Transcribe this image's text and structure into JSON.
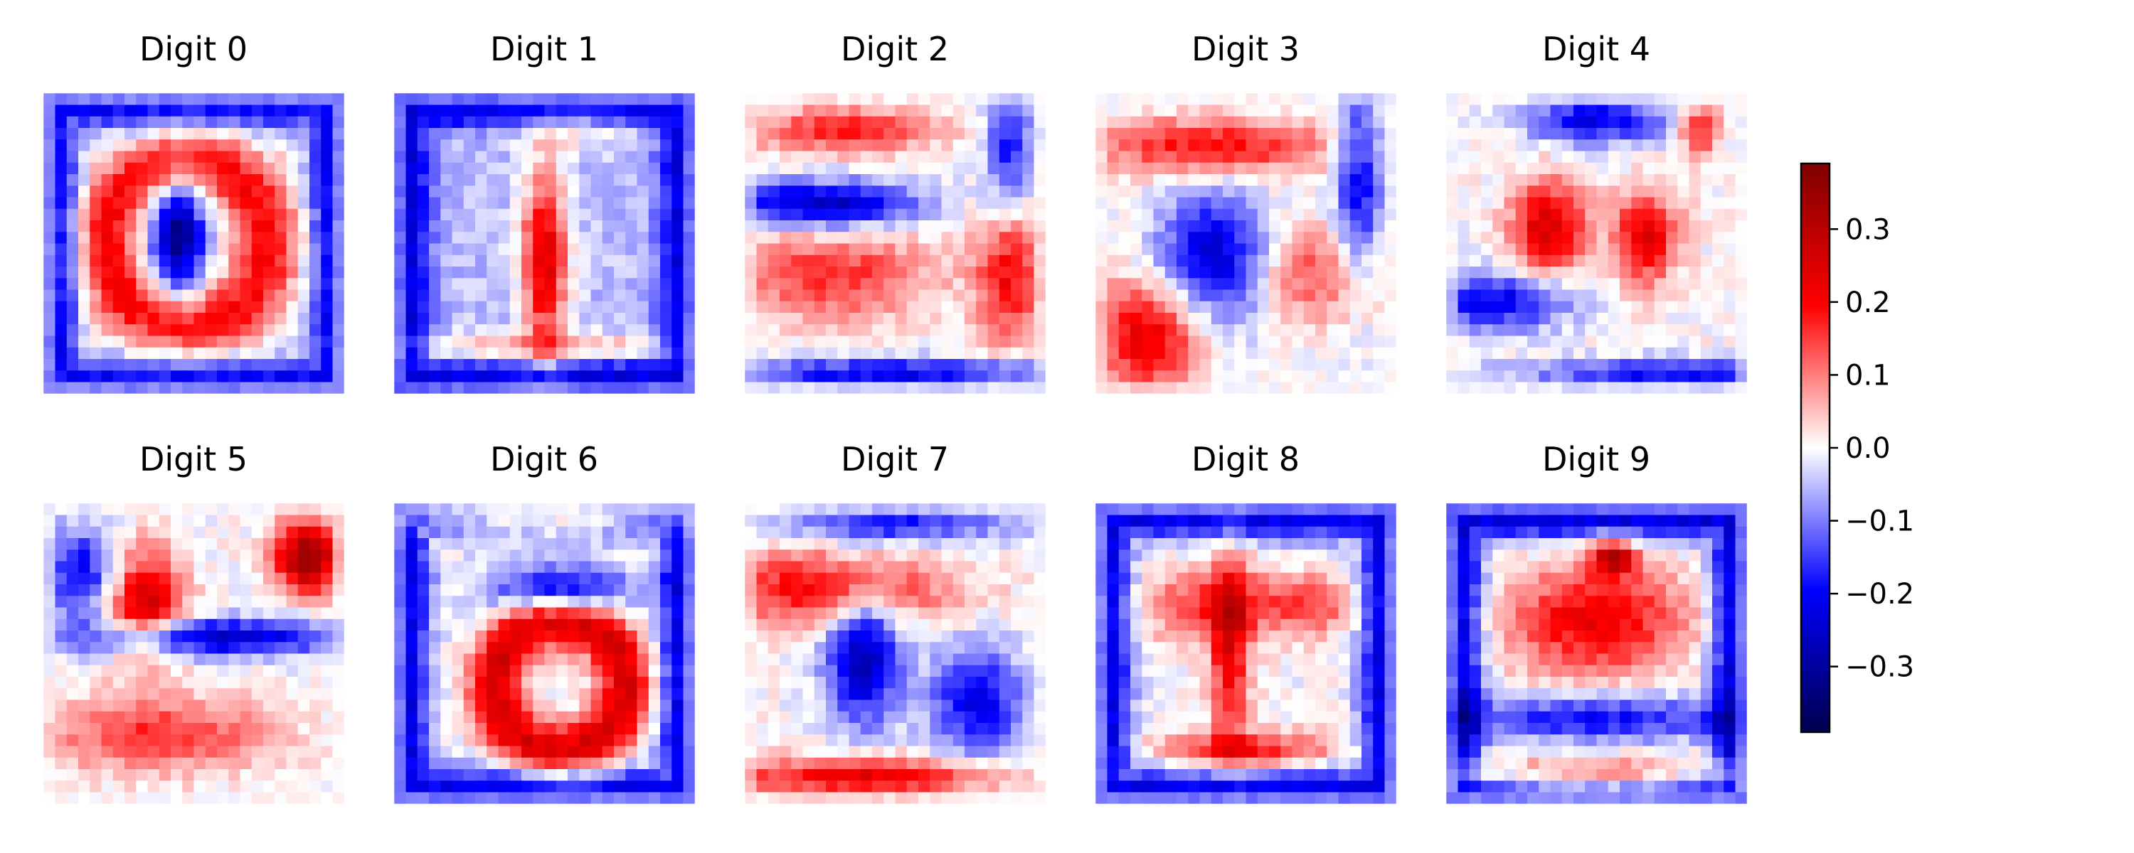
{
  "chart_data": {
    "type": "heatmap",
    "title": "",
    "colormap": "seismic",
    "colormap_stops": [
      "#00004c",
      "#0000ff",
      "#ffffff",
      "#ff0000",
      "#7f0000"
    ],
    "vmin": -0.39,
    "vmax": 0.39,
    "grid_shape": [
      28,
      28
    ],
    "layout": "2 rows x 5 columns",
    "panels": [
      {
        "title": "Digit 0"
      },
      {
        "title": "Digit 1"
      },
      {
        "title": "Digit 2"
      },
      {
        "title": "Digit 3"
      },
      {
        "title": "Digit 4"
      },
      {
        "title": "Digit 5"
      },
      {
        "title": "Digit 6"
      },
      {
        "title": "Digit 7"
      },
      {
        "title": "Digit 8"
      },
      {
        "title": "Digit 9"
      }
    ],
    "colorbar": {
      "ticks": [
        0.3,
        0.2,
        0.1,
        0.0,
        -0.1,
        -0.2,
        -0.3
      ],
      "tick_labels": [
        "0.3",
        "0.2",
        "0.1",
        "0.0",
        "−0.1",
        "−0.2",
        "−0.3"
      ]
    }
  }
}
